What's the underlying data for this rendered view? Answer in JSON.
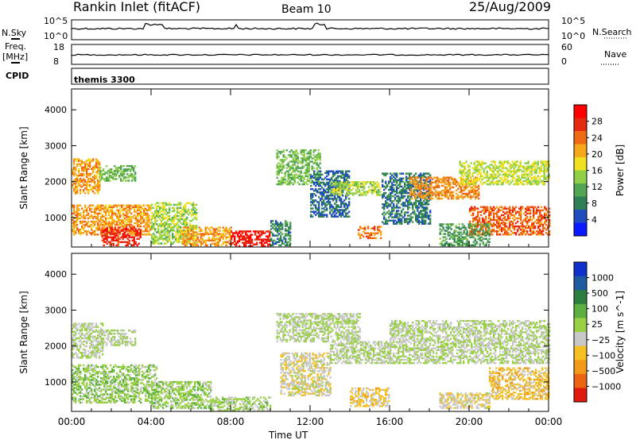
{
  "header": {
    "title": "Rankin Inlet (fitACF)",
    "beam": "Beam 10",
    "date": "25/Aug/2009"
  },
  "panels": {
    "nsky": {
      "label": "N.Sky",
      "tick_top": "10^5",
      "tick_bottom": "10^0"
    },
    "nsearch": {
      "label": "N.Search",
      "tick_top": "10^5",
      "tick_bottom": "10^0"
    },
    "freq": {
      "label_top": "Freq.",
      "label_unit": "[MHz]",
      "tick_top": "18",
      "tick_bottom": "8"
    },
    "nave": {
      "label": "Nave",
      "tick_top": "60",
      "tick_bottom": "0"
    },
    "cpid": {
      "label": "CPID",
      "value": "themis 3300"
    }
  },
  "colors": {
    "power": [
      "#0a1aff",
      "#1f4dbd",
      "#2f7f55",
      "#52a552",
      "#8fd048",
      "#f0e020",
      "#f5a81c",
      "#ee6a14",
      "#e42a10",
      "#ff0000"
    ],
    "velocity": [
      "#1030cc",
      "#1e5aa0",
      "#2b7d40",
      "#5cb040",
      "#9ad045",
      "#c8c8c8",
      "#f5c020",
      "#f29a18",
      "#ea6414",
      "#e01a0c"
    ]
  },
  "chart_data": [
    {
      "type": "heatmap",
      "name": "power-panel",
      "ylabel": "Slant Range [km]",
      "xlabel": "Time UT",
      "x_ticks": [
        "00:00",
        "04:00",
        "08:00",
        "12:00",
        "16:00",
        "20:00",
        "00:00"
      ],
      "xlim_hours": [
        0,
        24
      ],
      "y_ticks": [
        1000,
        2000,
        3000,
        4000
      ],
      "ylim": [
        180,
        4580
      ],
      "colorbar": {
        "label": "Power [dB]",
        "ticks": [
          "4",
          "8",
          "12",
          "16",
          "20",
          "24",
          "28"
        ],
        "range": [
          0,
          30
        ]
      },
      "regions": [
        {
          "t": [
            0.0,
            1.4
          ],
          "r": [
            1650,
            2600
          ],
          "v": 20
        },
        {
          "t": [
            1.4,
            3.2
          ],
          "r": [
            2000,
            2450
          ],
          "v": 12
        },
        {
          "t": [
            0.0,
            4.0
          ],
          "r": [
            500,
            1350
          ],
          "v": 20
        },
        {
          "t": [
            1.5,
            3.5
          ],
          "r": [
            200,
            700
          ],
          "v": 26
        },
        {
          "t": [
            4.0,
            6.3
          ],
          "r": [
            250,
            1400
          ],
          "v": 14
        },
        {
          "t": [
            5.5,
            8.0
          ],
          "r": [
            200,
            700
          ],
          "v": 20
        },
        {
          "t": [
            8.0,
            10.0
          ],
          "r": [
            180,
            600
          ],
          "v": 27
        },
        {
          "t": [
            10.0,
            11.0
          ],
          "r": [
            200,
            900
          ],
          "v": 8
        },
        {
          "t": [
            10.3,
            12.5
          ],
          "r": [
            1900,
            2850
          ],
          "v": 12
        },
        {
          "t": [
            12.0,
            14.0
          ],
          "r": [
            1000,
            2300
          ],
          "v": 6
        },
        {
          "t": [
            13.0,
            15.5
          ],
          "r": [
            1600,
            2000
          ],
          "v": 14
        },
        {
          "t": [
            14.4,
            15.6
          ],
          "r": [
            400,
            750
          ],
          "v": 22
        },
        {
          "t": [
            15.6,
            18.0
          ],
          "r": [
            800,
            2200
          ],
          "v": 7
        },
        {
          "t": [
            17.0,
            20.5
          ],
          "r": [
            1500,
            2100
          ],
          "v": 21
        },
        {
          "t": [
            19.5,
            24.0
          ],
          "r": [
            1900,
            2550
          ],
          "v": 15
        },
        {
          "t": [
            20.0,
            24.0
          ],
          "r": [
            500,
            1300
          ],
          "v": 23
        },
        {
          "t": [
            18.5,
            21.0
          ],
          "r": [
            200,
            800
          ],
          "v": 10
        }
      ]
    },
    {
      "type": "heatmap",
      "name": "velocity-panel",
      "ylabel": "Slant Range [km]",
      "xlabel": "Time UT",
      "x_ticks": [
        "00:00",
        "04:00",
        "08:00",
        "12:00",
        "16:00",
        "20:00",
        "00:00"
      ],
      "xlim_hours": [
        0,
        24
      ],
      "y_ticks": [
        1000,
        2000,
        3000,
        4000
      ],
      "ylim": [
        180,
        4580
      ],
      "colorbar": {
        "label": "Velocity [m s^-1]",
        "ticks": [
          "1000",
          "500",
          "100",
          "25",
          "-25",
          "-100",
          "-500",
          "-1000"
        ],
        "range": [
          -1200,
          1200
        ]
      },
      "regions": [
        {
          "t": [
            0.0,
            1.6
          ],
          "r": [
            1650,
            2600
          ],
          "v": 0
        },
        {
          "t": [
            1.4,
            3.2
          ],
          "r": [
            2000,
            2450
          ],
          "v": 0
        },
        {
          "t": [
            0.0,
            4.3
          ],
          "r": [
            400,
            1450
          ],
          "v": 150
        },
        {
          "t": [
            4.0,
            7.0
          ],
          "r": [
            250,
            1000
          ],
          "v": 120
        },
        {
          "t": [
            7.0,
            10.0
          ],
          "r": [
            180,
            550
          ],
          "v": 60
        },
        {
          "t": [
            10.3,
            14.5
          ],
          "r": [
            2100,
            2900
          ],
          "v": 0
        },
        {
          "t": [
            10.5,
            13.0
          ],
          "r": [
            600,
            1800
          ],
          "v": -150
        },
        {
          "t": [
            13.0,
            16.0
          ],
          "r": [
            1500,
            2100
          ],
          "v": 0
        },
        {
          "t": [
            14.0,
            16.0
          ],
          "r": [
            300,
            800
          ],
          "v": -300
        },
        {
          "t": [
            16.0,
            24.0
          ],
          "r": [
            1500,
            2700
          ],
          "v": 0
        },
        {
          "t": [
            21.0,
            24.0
          ],
          "r": [
            500,
            1400
          ],
          "v": -350
        },
        {
          "t": [
            18.5,
            21.0
          ],
          "r": [
            250,
            700
          ],
          "v": -200
        }
      ]
    }
  ]
}
